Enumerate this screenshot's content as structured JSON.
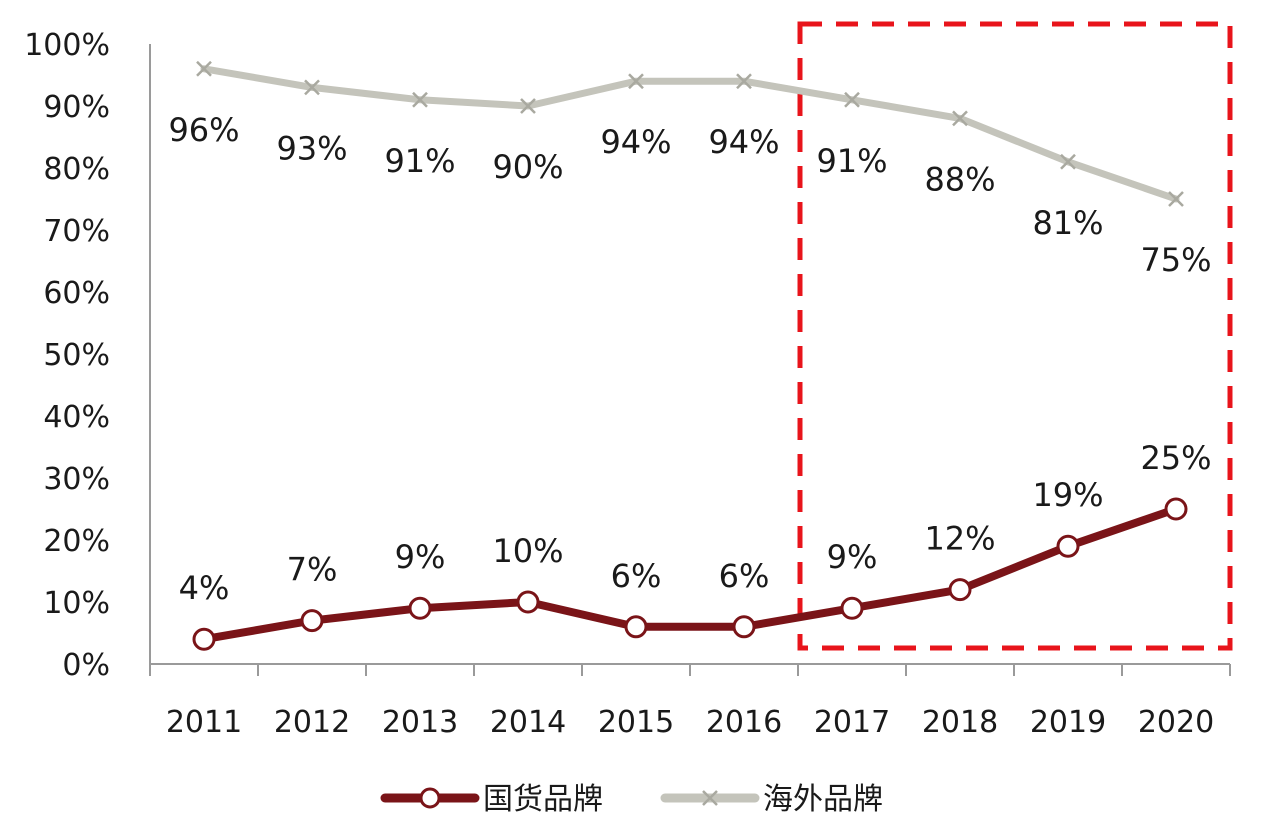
{
  "chart_data": {
    "type": "line",
    "categories": [
      "2011",
      "2012",
      "2013",
      "2014",
      "2015",
      "2016",
      "2017",
      "2018",
      "2019",
      "2020"
    ],
    "series": [
      {
        "name": "国货品牌",
        "values": [
          4,
          7,
          9,
          10,
          6,
          6,
          9,
          12,
          19,
          25
        ],
        "labels": [
          "4%",
          "7%",
          "9%",
          "10%",
          "6%",
          "6%",
          "9%",
          "12%",
          "19%",
          "25%"
        ],
        "color": "#7a1418",
        "marker": "circle"
      },
      {
        "name": "海外品牌",
        "values": [
          96,
          93,
          91,
          90,
          94,
          94,
          91,
          88,
          81,
          75
        ],
        "labels": [
          "96%",
          "93%",
          "91%",
          "90%",
          "94%",
          "94%",
          "91%",
          "88%",
          "81%",
          "75%"
        ],
        "color": "#c4c4bb",
        "marker": "x"
      }
    ],
    "ylim": [
      0,
      100
    ],
    "yticks": [
      "0%",
      "10%",
      "20%",
      "30%",
      "40%",
      "50%",
      "60%",
      "70%",
      "80%",
      "90%",
      "100%"
    ],
    "grid": false,
    "legend_position": "bottom",
    "highlight_box": {
      "from": "2017",
      "to": "2020",
      "color": "#e8141b",
      "style": "dashed"
    }
  }
}
